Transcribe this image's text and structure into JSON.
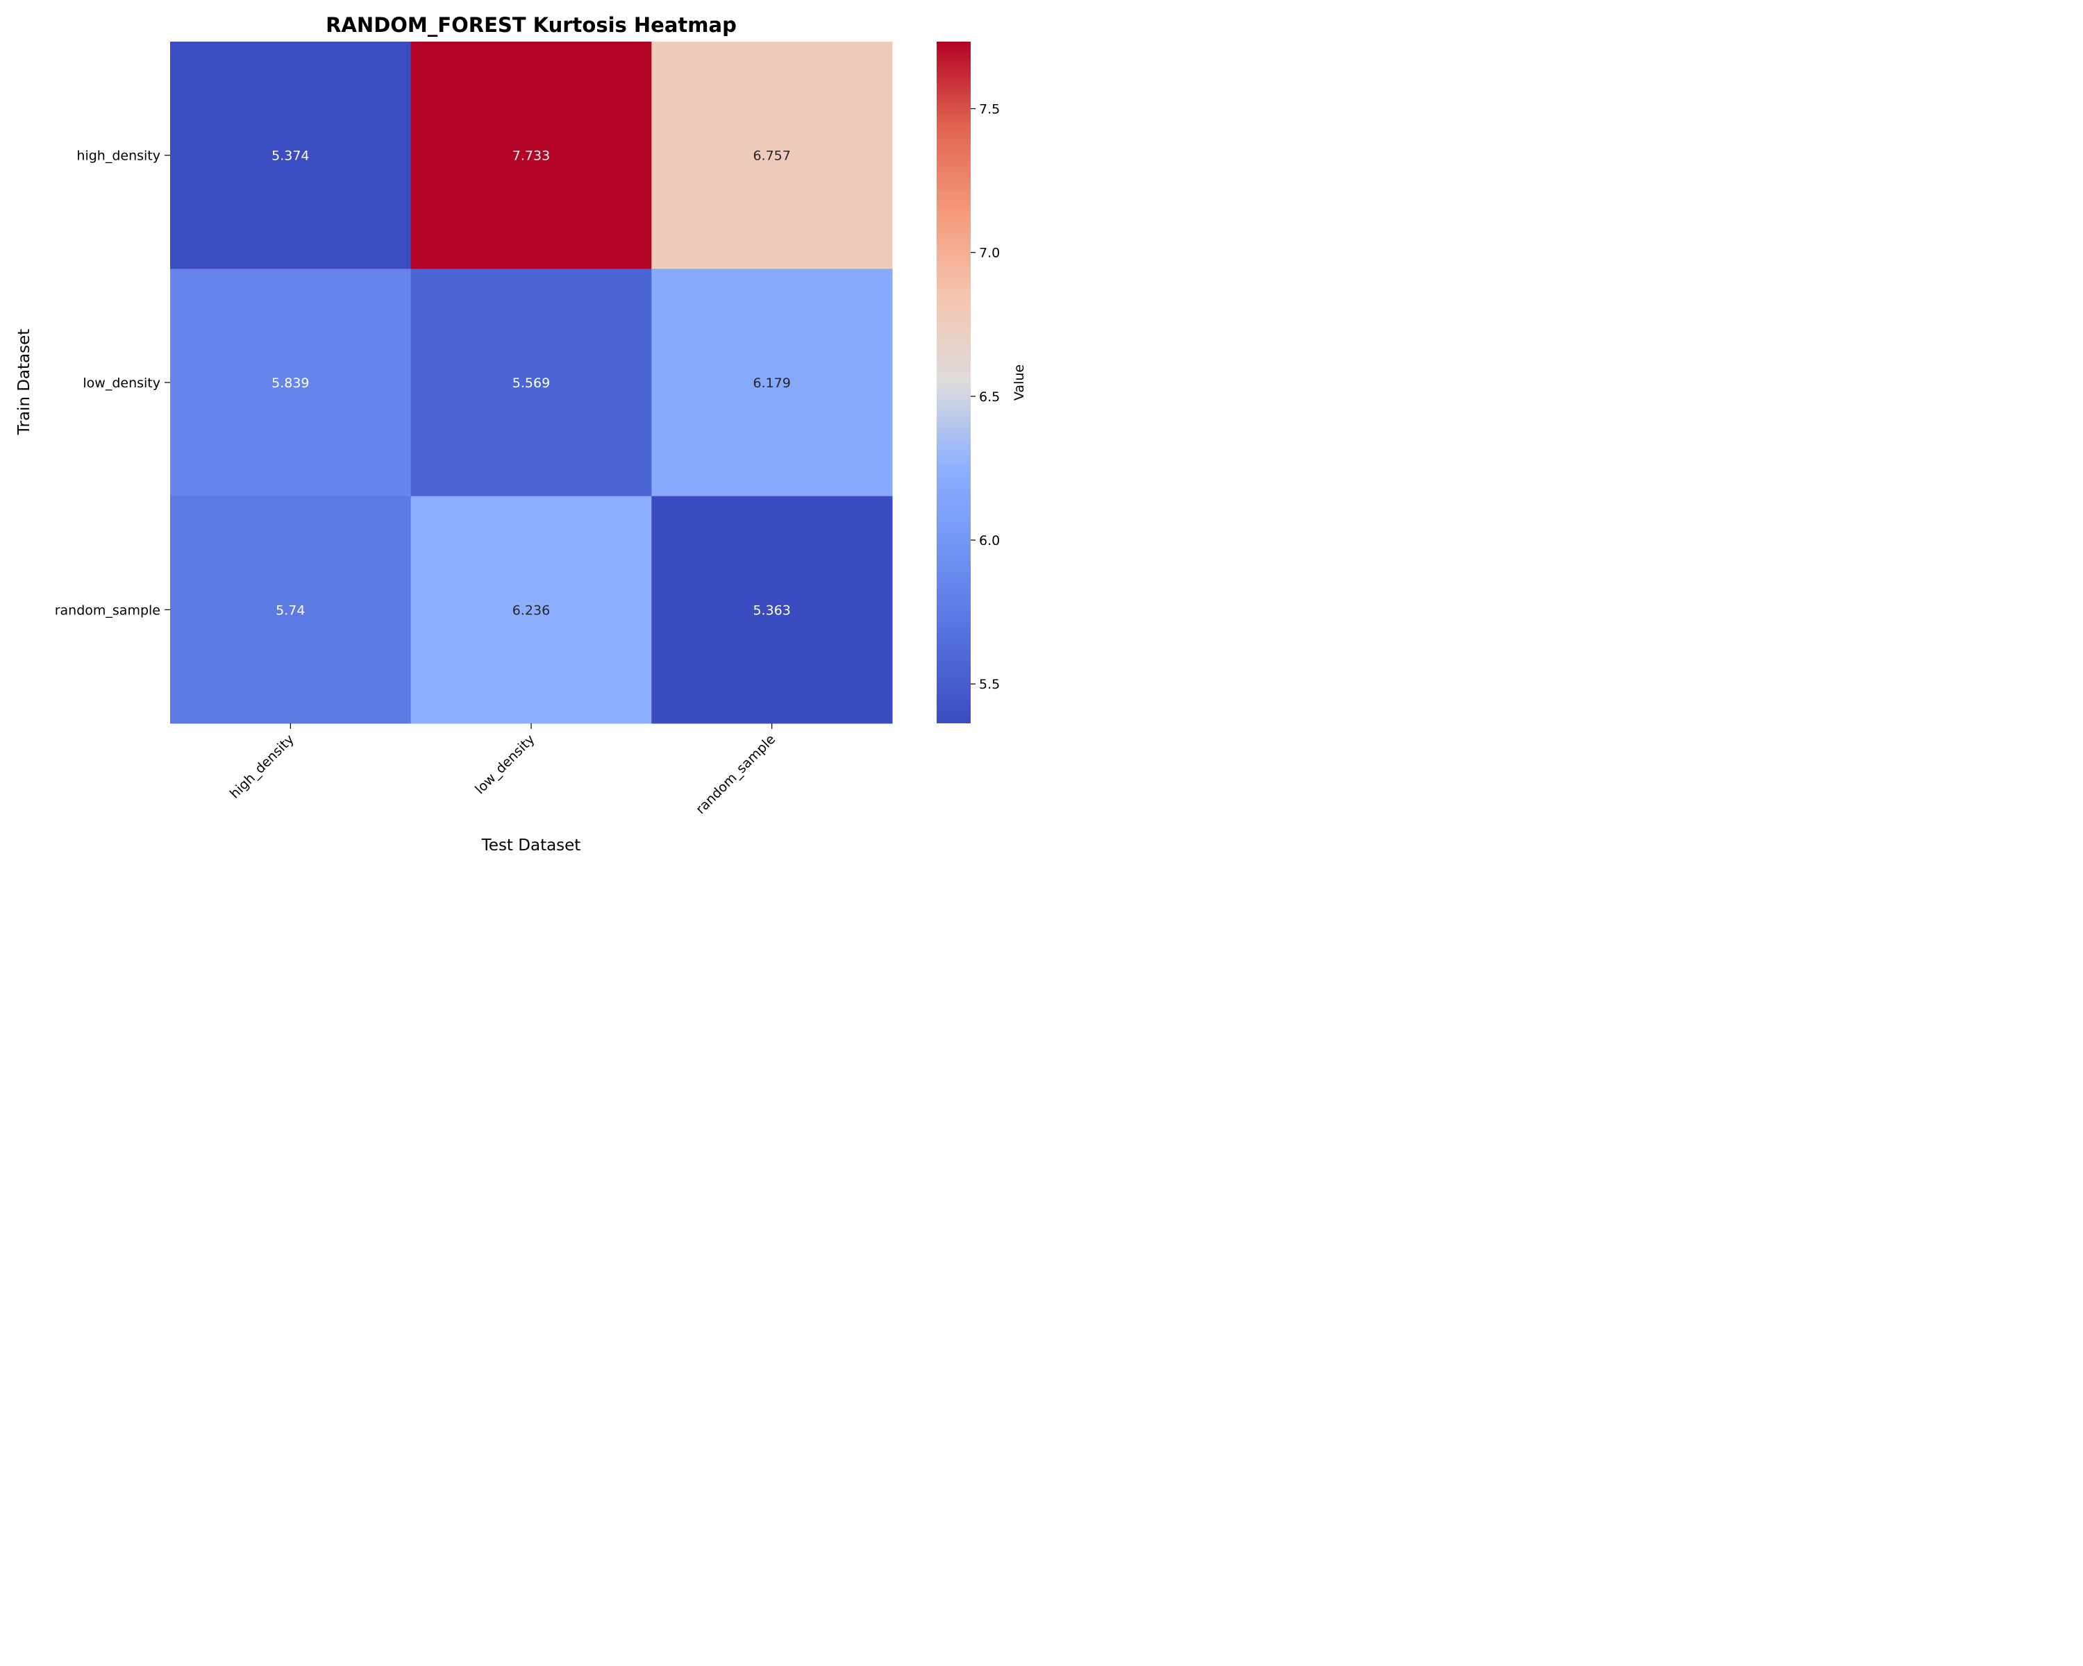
{
  "chart_data": {
    "type": "heatmap",
    "title": "RANDOM_FOREST Kurtosis Heatmap",
    "xlabel": "Test Dataset",
    "ylabel": "Train Dataset",
    "x_categories": [
      "high_density",
      "low_density",
      "random_sample"
    ],
    "y_categories": [
      "high_density",
      "low_density",
      "random_sample"
    ],
    "values": [
      [
        5.374,
        7.733,
        6.757
      ],
      [
        5.839,
        5.569,
        6.179
      ],
      [
        5.74,
        6.236,
        5.363
      ]
    ],
    "value_labels": [
      [
        "5.374",
        "7.733",
        "6.757"
      ],
      [
        "5.839",
        "5.569",
        "6.179"
      ],
      [
        "5.74",
        "6.236",
        "5.363"
      ]
    ],
    "colormap": "coolwarm",
    "colorbar": {
      "label": "Value",
      "min": 5.363,
      "max": 7.733,
      "ticks": [
        5.5,
        6.0,
        6.5,
        7.0,
        7.5
      ],
      "tick_labels": [
        "5.5",
        "6.0",
        "6.5",
        "7.0",
        "7.5"
      ]
    }
  }
}
